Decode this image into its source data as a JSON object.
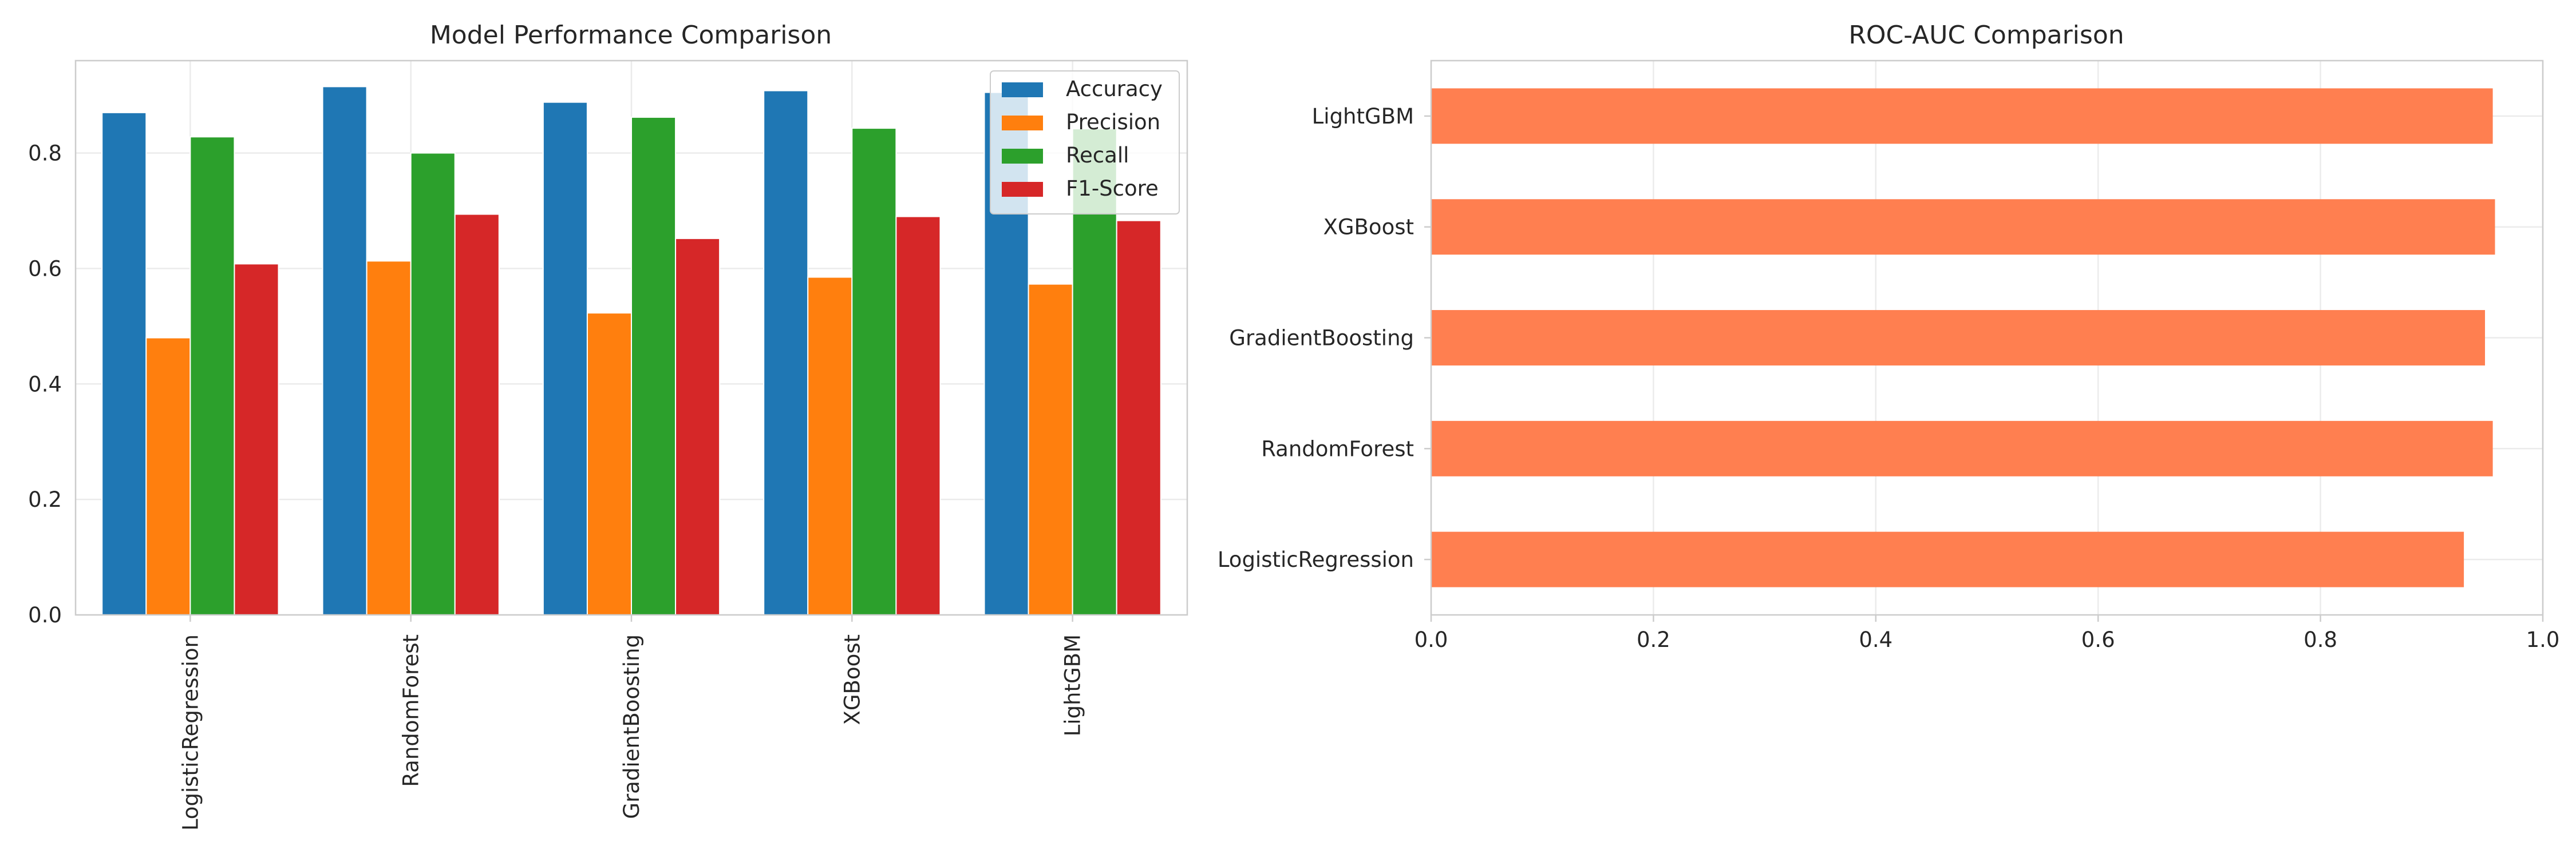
{
  "chart_data": [
    {
      "type": "bar",
      "title": "Model Performance Comparison",
      "xlabel": "",
      "ylabel": "",
      "categories": [
        "LogisticRegression",
        "RandomForest",
        "GradientBoosting",
        "XGBoost",
        "LightGBM"
      ],
      "series": [
        {
          "name": "Accuracy",
          "color": "#1f77b4",
          "values": [
            0.87,
            0.915,
            0.888,
            0.908,
            0.905
          ]
        },
        {
          "name": "Precision",
          "color": "#ff7f0e",
          "values": [
            0.48,
            0.613,
            0.523,
            0.585,
            0.573
          ]
        },
        {
          "name": "Recall",
          "color": "#2ca02c",
          "values": [
            0.828,
            0.8,
            0.862,
            0.843,
            0.842
          ]
        },
        {
          "name": "F1-Score",
          "color": "#d62728",
          "values": [
            0.608,
            0.694,
            0.652,
            0.69,
            0.683
          ]
        }
      ],
      "ylim": [
        0,
        0.96
      ],
      "yticks": [
        "0.0",
        "0.2",
        "0.4",
        "0.6",
        "0.8"
      ],
      "grid": true,
      "legend": "top-right"
    },
    {
      "type": "bar",
      "orientation": "horizontal",
      "title": "ROC-AUC Comparison",
      "xlabel": "",
      "ylabel": "",
      "categories": [
        "LogisticRegression",
        "RandomForest",
        "GradientBoosting",
        "XGBoost",
        "LightGBM"
      ],
      "values": [
        0.929,
        0.955,
        0.948,
        0.957,
        0.955
      ],
      "color": "#ff7f50",
      "xlim": [
        0,
        1.0
      ],
      "xticks": [
        "0.0",
        "0.2",
        "0.4",
        "0.6",
        "0.8",
        "1.0"
      ],
      "grid": true
    }
  ]
}
